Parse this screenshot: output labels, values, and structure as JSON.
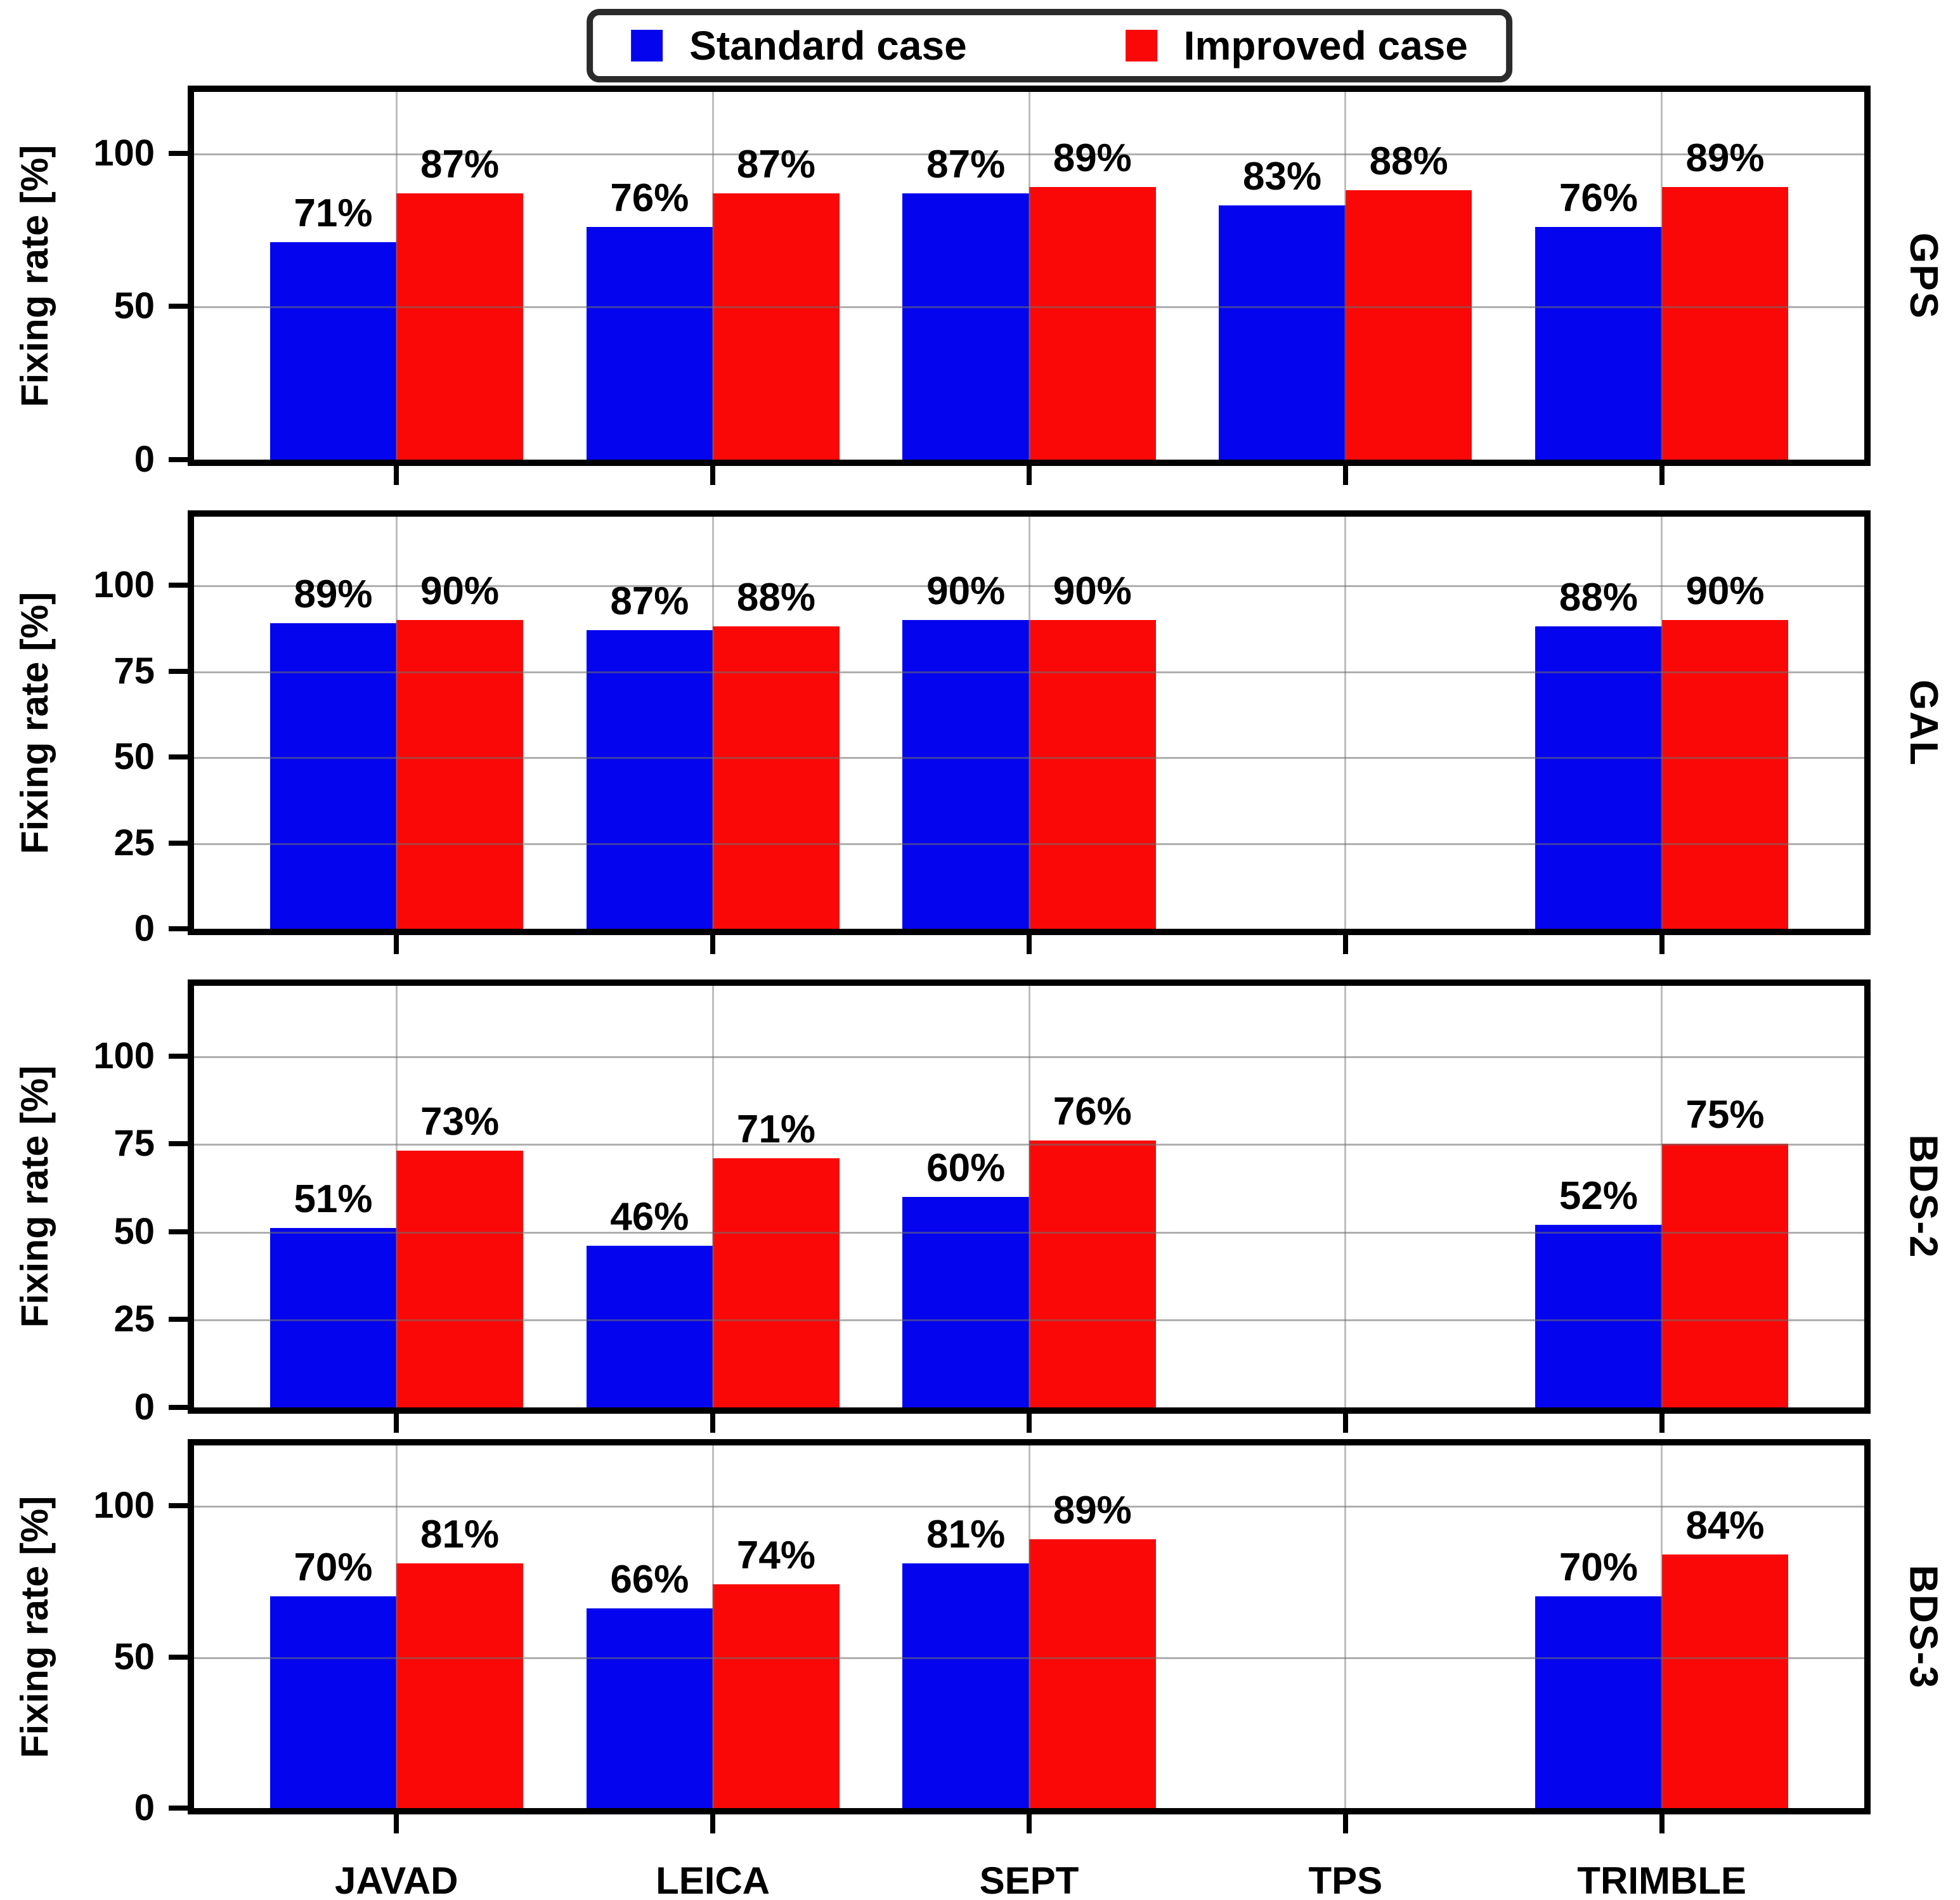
{
  "figure": {
    "background": "#ffffff",
    "spine_color": "#000000",
    "grid_color": "#b0b0b0"
  },
  "legend": {
    "border_color": "#2b2b2b",
    "items": [
      {
        "label": "Standard case",
        "color": "#0404ee"
      },
      {
        "label": "Improved case",
        "color": "#fa0808"
      }
    ]
  },
  "chart_data": {
    "type": "bar",
    "title": "",
    "categories": [
      "JAVAD",
      "LEICA",
      "SEPT",
      "TPS",
      "TRIMBLE"
    ],
    "ylabel": "Fixing rate [%]",
    "ylim": [
      0,
      120
    ],
    "grid": true,
    "legend_position": "top-center",
    "value_label_suffix": "%",
    "series_colors": {
      "Standard case": "#0404ee",
      "Improved case": "#fa0808"
    },
    "panels": [
      {
        "name": "GPS",
        "yticks": [
          0,
          50,
          100
        ],
        "series": [
          {
            "name": "Standard case",
            "values": [
              71,
              76,
              87,
              83,
              76
            ]
          },
          {
            "name": "Improved case",
            "values": [
              87,
              87,
              89,
              88,
              89
            ]
          }
        ]
      },
      {
        "name": "GAL",
        "yticks": [
          0,
          25,
          50,
          75,
          100
        ],
        "series": [
          {
            "name": "Standard case",
            "values": [
              89,
              87,
              90,
              null,
              88
            ]
          },
          {
            "name": "Improved case",
            "values": [
              90,
              88,
              90,
              null,
              90
            ]
          }
        ]
      },
      {
        "name": "BDS-2",
        "yticks": [
          0,
          25,
          50,
          75,
          100
        ],
        "series": [
          {
            "name": "Standard case",
            "values": [
              51,
              46,
              60,
              null,
              52
            ]
          },
          {
            "name": "Improved case",
            "values": [
              73,
              71,
              76,
              null,
              75
            ]
          }
        ]
      },
      {
        "name": "BDS-3",
        "yticks": [
          0,
          50,
          100
        ],
        "series": [
          {
            "name": "Standard case",
            "values": [
              70,
              66,
              81,
              null,
              70
            ]
          },
          {
            "name": "Improved case",
            "values": [
              81,
              74,
              89,
              null,
              84
            ]
          }
        ]
      }
    ]
  }
}
